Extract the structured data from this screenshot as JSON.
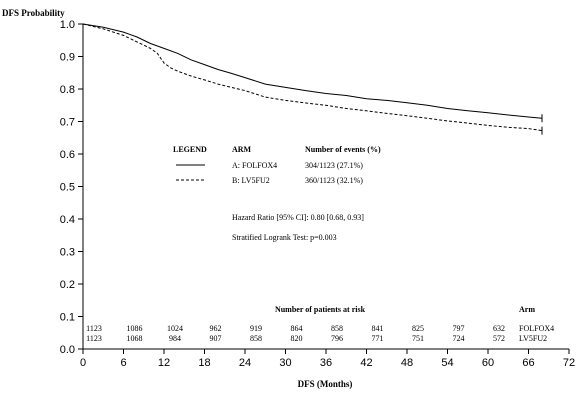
{
  "chart_data": {
    "type": "line",
    "title": "",
    "ylabel": "DFS Probability",
    "xlabel": "DFS (Months)",
    "xlim": [
      0,
      72
    ],
    "ylim": [
      0.0,
      1.0
    ],
    "x_ticks": [
      0,
      6,
      12,
      18,
      24,
      30,
      36,
      42,
      48,
      54,
      60,
      66,
      72
    ],
    "y_ticks": [
      0.0,
      0.1,
      0.2,
      0.3,
      0.4,
      0.5,
      0.6,
      0.7,
      0.8,
      0.9,
      1.0
    ],
    "grid": false,
    "legend": {
      "header_legend": "LEGEND",
      "header_arm": "ARM",
      "header_events": "Number of events (%)",
      "placement": "center"
    },
    "series": [
      {
        "name": "A: FOLFOX4",
        "style": "solid",
        "events_text": "304/1123  (27.1%)",
        "x": [
          0,
          3,
          6,
          8,
          10,
          12,
          14,
          16,
          18,
          20,
          22,
          24,
          27,
          30,
          33,
          36,
          39,
          42,
          45,
          48,
          51,
          54,
          57,
          60,
          63,
          66,
          68
        ],
        "y": [
          1.0,
          0.99,
          0.975,
          0.96,
          0.94,
          0.925,
          0.91,
          0.89,
          0.875,
          0.86,
          0.848,
          0.835,
          0.815,
          0.805,
          0.795,
          0.786,
          0.78,
          0.77,
          0.765,
          0.758,
          0.75,
          0.74,
          0.733,
          0.727,
          0.72,
          0.714,
          0.71
        ]
      },
      {
        "name": "B: LV5FU2",
        "style": "dashed",
        "events_text": "360/1123  (32.1%)",
        "x": [
          0,
          3,
          6,
          8,
          10,
          11,
          12,
          13,
          14,
          16,
          18,
          20,
          22,
          24,
          27,
          30,
          33,
          36,
          39,
          42,
          45,
          48,
          51,
          54,
          57,
          60,
          63,
          66,
          68
        ],
        "y": [
          1.0,
          0.985,
          0.965,
          0.945,
          0.925,
          0.91,
          0.88,
          0.865,
          0.855,
          0.84,
          0.828,
          0.815,
          0.805,
          0.795,
          0.775,
          0.765,
          0.757,
          0.75,
          0.74,
          0.733,
          0.725,
          0.718,
          0.71,
          0.702,
          0.695,
          0.688,
          0.682,
          0.678,
          0.672
        ]
      }
    ],
    "annotations": {
      "hazard_ratio": "Hazard Ratio [95% CI]: 0.80 [0.68, 0.93]",
      "logrank": "Stratified Logrank Test:   p=0.003"
    },
    "at_risk": {
      "title": "Number of patients at risk",
      "arm_header": "Arm",
      "x": [
        0,
        6,
        12,
        18,
        24,
        30,
        36,
        42,
        48,
        54,
        60
      ],
      "rows": [
        {
          "arm": "FOLFOX4",
          "counts": [
            "1123",
            "1086",
            "1024",
            "962",
            "919",
            "864",
            "858",
            "841",
            "825",
            "797",
            "632"
          ]
        },
        {
          "arm": "LV5FU2",
          "counts": [
            "1123",
            "1068",
            "984",
            "907",
            "858",
            "820",
            "796",
            "771",
            "751",
            "724",
            "572"
          ]
        }
      ]
    }
  }
}
